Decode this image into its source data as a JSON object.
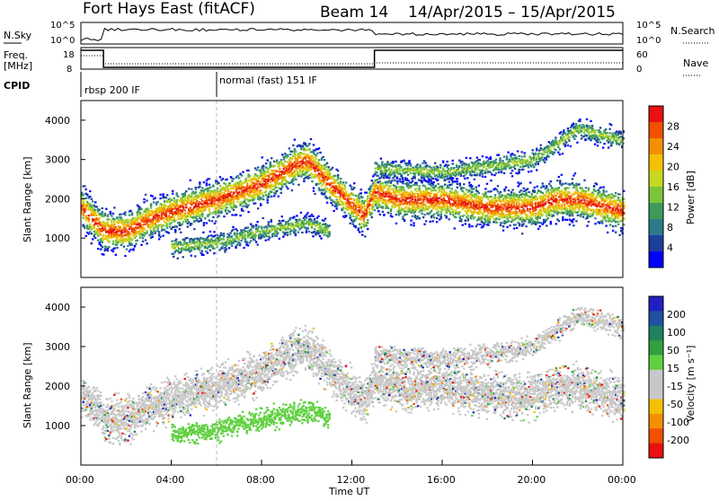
{
  "header": {
    "station": "Fort Hays East (fitACF)",
    "beam": "Beam 14",
    "dates": "14/Apr/2015 – 15/Apr/2015"
  },
  "top_panels": {
    "nsky": {
      "label": "N.Sky",
      "ticks": [
        "10^5",
        "10^0"
      ]
    },
    "nsearch": {
      "label": "N.Search",
      "ticks": [
        "10^5",
        "10^0"
      ]
    },
    "freq": {
      "label_line1": "Freq.",
      "label_line2": "[MHz]",
      "ticks": [
        "18",
        "8"
      ]
    },
    "nave": {
      "label": "Nave",
      "ticks": [
        "60",
        "0"
      ]
    },
    "cpid": {
      "label": "CPID",
      "mode1": "rbsp 200 IF",
      "mode2": "normal (fast) 151 IF"
    }
  },
  "time_axis": {
    "ticks": [
      "00:00",
      "04:00",
      "08:00",
      "12:00",
      "16:00",
      "20:00",
      "00:00"
    ],
    "label": "Time UT"
  },
  "power_panel": {
    "ylabel": "Slant Range [km]",
    "yticks": [
      "1000",
      "2000",
      "3000",
      "4000"
    ],
    "colorbar_label": "Power [dB]",
    "colorbar_ticks": [
      "4",
      "8",
      "12",
      "16",
      "20",
      "24",
      "28"
    ],
    "colors": [
      "#0000ff",
      "#1c3f9c",
      "#2e7a8c",
      "#3f9a5a",
      "#7cc43a",
      "#c8d820",
      "#f4c000",
      "#f49000",
      "#f05000",
      "#e81010"
    ]
  },
  "velocity_panel": {
    "ylabel": "Slant Range [km]",
    "yticks": [
      "1000",
      "2000",
      "3000",
      "4000"
    ],
    "colorbar_label": "Velocity [m s⁻¹]",
    "colorbar_ticks": [
      "200",
      "100",
      "50",
      "15",
      "-15",
      "-50",
      "-100",
      "-200"
    ],
    "colors": [
      "#2020c0",
      "#2050a0",
      "#208060",
      "#30a040",
      "#60d040",
      "#c8c8c8",
      "#c8c8c8",
      "#f4c000",
      "#f49000",
      "#f05000",
      "#e81010"
    ]
  },
  "chart_data": {
    "type": "heatmap",
    "x_range_hours": [
      0,
      24
    ],
    "y_range_km": [
      0,
      4500
    ],
    "power_range_db": [
      0,
      30
    ],
    "velocity_range": [
      -250,
      250
    ],
    "bands": [
      {
        "name": "main",
        "x": [
          0,
          1,
          2,
          3,
          4,
          6,
          8,
          9.5,
          10,
          11,
          12.5,
          13,
          14,
          16,
          18,
          20,
          21,
          22,
          24
        ],
        "center_km": [
          1800,
          1200,
          1200,
          1500,
          1700,
          2000,
          2400,
          2900,
          3000,
          2400,
          1600,
          2200,
          2000,
          2000,
          1800,
          1800,
          2000,
          2000,
          1700
        ]
      },
      {
        "name": "lower",
        "x": [
          4,
          6,
          8,
          10,
          11
        ],
        "center_km": [
          800,
          900,
          1200,
          1400,
          1200
        ]
      },
      {
        "name": "upper",
        "x": [
          13,
          16,
          20,
          22,
          24
        ],
        "center_km": [
          2800,
          2700,
          3000,
          3800,
          3500
        ]
      }
    ]
  }
}
